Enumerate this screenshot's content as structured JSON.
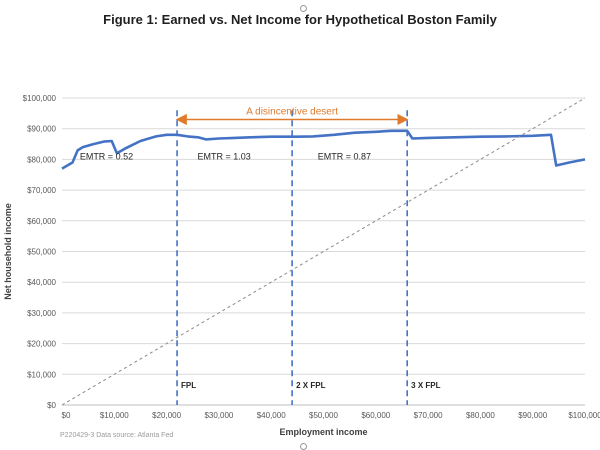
{
  "figure": {
    "title": "Figure 1: Earned vs. Net Income for Hypothetical Boston Family",
    "source_note": "P220429-3 Data source: Atlanta Fed"
  },
  "chart_data": {
    "type": "line",
    "xlabel": "Employment income",
    "ylabel": "Net household income",
    "xlim": [
      0,
      100000
    ],
    "ylim": [
      0,
      100000
    ],
    "x_ticks": [
      0,
      10000,
      20000,
      30000,
      40000,
      50000,
      60000,
      70000,
      80000,
      90000,
      100000
    ],
    "x_tick_labels": [
      "$0",
      "$10,000",
      "$20,000",
      "$30,000",
      "$40,000",
      "$50,000",
      "$60,000",
      "$70,000",
      "$80,000",
      "$90,000",
      "$100,000"
    ],
    "y_ticks": [
      0,
      10000,
      20000,
      30000,
      40000,
      50000,
      60000,
      70000,
      80000,
      90000,
      100000
    ],
    "y_tick_labels": [
      "$0",
      "$10,000",
      "$20,000",
      "$30,000",
      "$40,000",
      "$50,000",
      "$60,000",
      "$70,000",
      "$80,000",
      "$90,000",
      "$100,000"
    ],
    "grid": true,
    "series": [
      {
        "style": "solid",
        "color": "#4472c4",
        "x": [
          0,
          2000,
          3000,
          4000,
          6000,
          8000,
          9500,
          10500,
          12000,
          15000,
          18000,
          20000,
          22000,
          24000,
          26000,
          27500,
          30000,
          33000,
          36000,
          40000,
          45000,
          48000,
          52000,
          56000,
          60000,
          63000,
          66000,
          67000,
          70000,
          75000,
          80000,
          85000,
          90000,
          93500,
          94000,
          94500,
          97000,
          100000
        ],
        "y": [
          77000,
          79000,
          83000,
          84000,
          85000,
          85800,
          86000,
          82000,
          83500,
          86000,
          87500,
          88000,
          88000,
          87500,
          87200,
          86500,
          86800,
          87000,
          87200,
          87400,
          87400,
          87500,
          88000,
          88700,
          89000,
          89300,
          89300,
          86800,
          87000,
          87200,
          87400,
          87500,
          87700,
          88000,
          83000,
          78000,
          79000,
          80000
        ]
      },
      {
        "style": "dotted",
        "color": "#8a8a8a",
        "x": [
          0,
          100000
        ],
        "y": [
          0,
          100000
        ]
      }
    ],
    "vlines": [
      {
        "x": 22000,
        "label": "FPL"
      },
      {
        "x": 44000,
        "label": "2 X FPL"
      },
      {
        "x": 66000,
        "label": "3 X FPL"
      }
    ],
    "vline_color": "#4472c4",
    "annotations": {
      "arrow": {
        "x_from": 22000,
        "x_to": 66000,
        "y": 93000,
        "label": "A disincentive desert",
        "color": "#e07b2e"
      },
      "emtr": [
        {
          "x": 8500,
          "y": 80000,
          "label": "EMTR = 0.52"
        },
        {
          "x": 31000,
          "y": 80000,
          "label": "EMTR = 1.03"
        },
        {
          "x": 54000,
          "y": 80000,
          "label": "EMTR = 0.87"
        }
      ]
    }
  }
}
